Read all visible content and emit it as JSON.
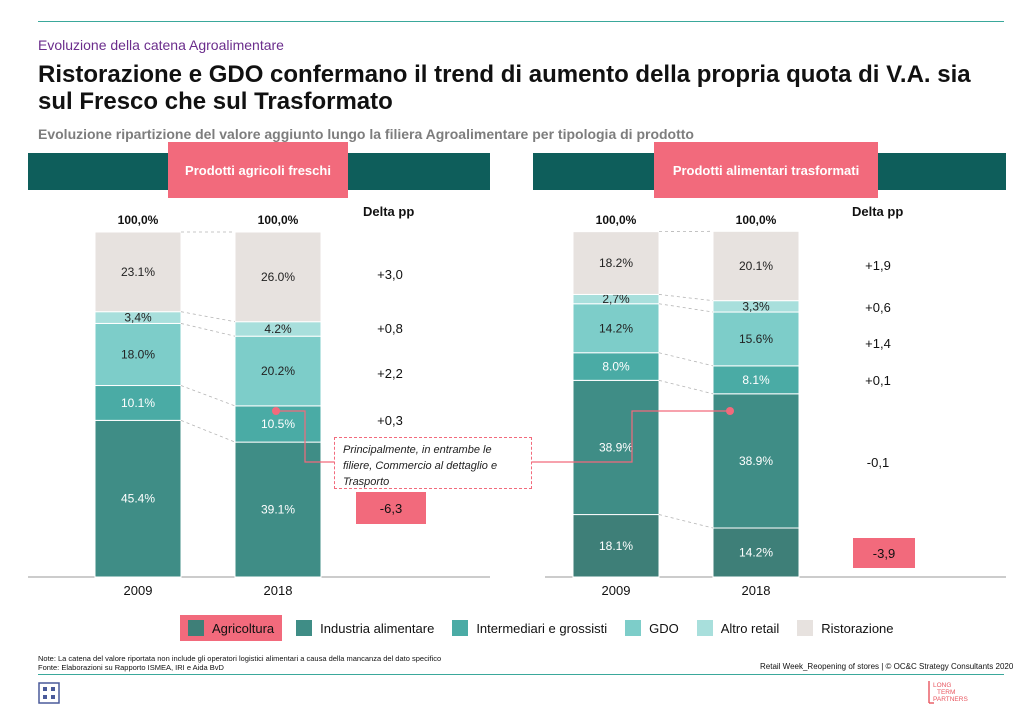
{
  "header": {
    "overline": "Evoluzione della catena Agroalimentare",
    "title": "Ristorazione e GDO confermano il trend di aumento della propria quota di V.A. sia sul Fresco che sul Trasformato",
    "subtitle": "Evoluzione ripartizione del valore aggiunto lungo la filiera Agroalimentare per tipologia di prodotto"
  },
  "panels": [
    {
      "banner": "Prodotti agricoli freschi",
      "delta_header": "Delta pp"
    },
    {
      "banner": "Prodotti alimentari trasformati",
      "delta_header": "Delta pp"
    }
  ],
  "callout": "Principalmente, in entrambe le filiere, Commercio al dettaglio e Trasporto",
  "legend": [
    {
      "label": "Agricoltura",
      "color": "#3e7f78"
    },
    {
      "label": "Industria alimentare",
      "color": "#3f8d86"
    },
    {
      "label": "Intermediari e grossisti",
      "color": "#4aaba5"
    },
    {
      "label": "GDO",
      "color": "#7dcdc9"
    },
    {
      "label": "Altro retail",
      "color": "#a8dfdc"
    },
    {
      "label": "Ristorazione",
      "color": "#e7e2df"
    }
  ],
  "footer": {
    "note": "Note: La catena del valore riportata non include gli operatori logistici alimentari a causa della mancanza del dato specifico",
    "source": "Fonte: Elaborazioni su Rapporto ISMEA, IRI e Aida BvD",
    "credit": "Retail Week_Reopening of stores | © OC&C Strategy Consultants 2020",
    "logo_text": "LONG TERM PARTNERS"
  },
  "chart_data": [
    {
      "type": "bar",
      "stacked": true,
      "title": "Prodotti agricoli freschi",
      "categories": [
        "2009",
        "2018"
      ],
      "totals": [
        "100,0%",
        "100,0%"
      ],
      "series": [
        {
          "name": "Industria alimentare",
          "values": [
            45.4,
            39.1
          ],
          "labels": [
            "45.4%",
            "39.1%"
          ]
        },
        {
          "name": "Intermediari e grossisti",
          "values": [
            10.1,
            10.5
          ],
          "labels": [
            "10.1%",
            "10.5%"
          ]
        },
        {
          "name": "GDO",
          "values": [
            18.0,
            20.2
          ],
          "labels": [
            "18.0%",
            "20.2%"
          ]
        },
        {
          "name": "Altro retail",
          "values": [
            3.4,
            4.2
          ],
          "labels": [
            "3,4%",
            "4.2%"
          ]
        },
        {
          "name": "Ristorazione",
          "values": [
            23.1,
            26.0
          ],
          "labels": [
            "23.1%",
            "26.0%"
          ]
        }
      ],
      "delta_pp": [
        "-6,3",
        "+0,3",
        "+2,2",
        "+0,8",
        "+3,0"
      ],
      "ylim": [
        0,
        100
      ]
    },
    {
      "type": "bar",
      "stacked": true,
      "title": "Prodotti alimentari trasformati",
      "categories": [
        "2009",
        "2018"
      ],
      "totals": [
        "100,0%",
        "100,0%"
      ],
      "series": [
        {
          "name": "Agricoltura",
          "values": [
            18.1,
            14.2
          ],
          "labels": [
            "18.1%",
            "14.2%"
          ]
        },
        {
          "name": "Industria alimentare",
          "values": [
            38.9,
            38.9
          ],
          "labels": [
            "38.9%",
            "38.9%"
          ]
        },
        {
          "name": "Intermediari e grossisti",
          "values": [
            8.0,
            8.1
          ],
          "labels": [
            "8.0%",
            "8.1%"
          ]
        },
        {
          "name": "GDO",
          "values": [
            14.2,
            15.6
          ],
          "labels": [
            "14.2%",
            "15.6%"
          ]
        },
        {
          "name": "Altro retail",
          "values": [
            2.7,
            3.3
          ],
          "labels": [
            "2,7%",
            "3,3%"
          ]
        },
        {
          "name": "Ristorazione",
          "values": [
            18.2,
            20.1
          ],
          "labels": [
            "18.2%",
            "20.1%"
          ]
        }
      ],
      "delta_pp": [
        "-3,9",
        "-0,1",
        "+0,1",
        "+1,4",
        "+0,6",
        "+1,9"
      ],
      "ylim": [
        0,
        100
      ]
    }
  ]
}
